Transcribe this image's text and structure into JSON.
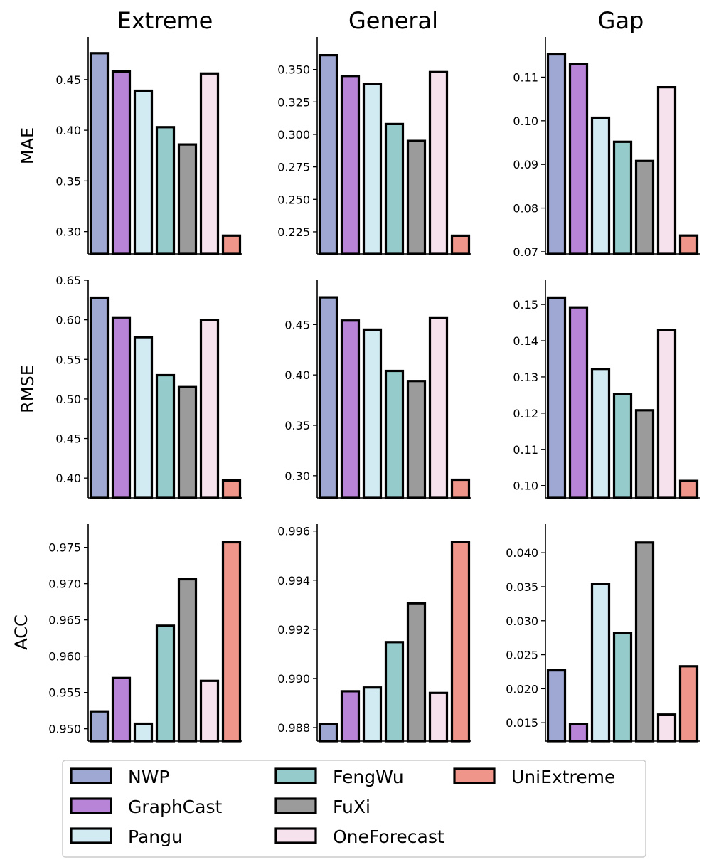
{
  "series_style": [
    {
      "name": "NWP",
      "color": "#9fa8d2"
    },
    {
      "name": "GraphCast",
      "color": "#b784d8"
    },
    {
      "name": "Pangu",
      "color": "#d2eaf1"
    },
    {
      "name": "FengWu",
      "color": "#95cccb"
    },
    {
      "name": "FuXi",
      "color": "#9b9b9b"
    },
    {
      "name": "OneForecast",
      "color": "#f6e2ec"
    },
    {
      "name": "UniExtreme",
      "color": "#ef9589"
    }
  ],
  "legend_labels": [
    "NWP",
    "GraphCast",
    "Pangu",
    "FengWu",
    "FuXi",
    "OneForecast",
    "UniExtreme"
  ],
  "legend_placement": "bottom-center",
  "column_titles": [
    "Extreme",
    "General",
    "Gap"
  ],
  "row_labels": [
    "MAE",
    "RMSE",
    "ACC"
  ],
  "chart_data": [
    {
      "type": "bar",
      "row": "MAE",
      "column": "Extreme",
      "categories": [
        "NWP",
        "GraphCast",
        "Pangu",
        "FengWu",
        "FuXi",
        "OneForecast",
        "UniExtreme"
      ],
      "values": [
        0.476,
        0.458,
        0.439,
        0.403,
        0.386,
        0.456,
        0.296
      ],
      "ylim": [
        0.278,
        0.492
      ],
      "yticks": [
        "0.30",
        "0.35",
        "0.40",
        "0.45"
      ]
    },
    {
      "type": "bar",
      "row": "MAE",
      "column": "General",
      "categories": [
        "NWP",
        "GraphCast",
        "Pangu",
        "FengWu",
        "FuXi",
        "OneForecast",
        "UniExtreme"
      ],
      "values": [
        0.361,
        0.345,
        0.339,
        0.308,
        0.295,
        0.348,
        0.222
      ],
      "ylim": [
        0.208,
        0.375
      ],
      "yticks": [
        "0.225",
        "0.250",
        "0.275",
        "0.300",
        "0.325",
        "0.350"
      ]
    },
    {
      "type": "bar",
      "row": "MAE",
      "column": "Gap",
      "categories": [
        "NWP",
        "GraphCast",
        "Pangu",
        "FengWu",
        "FuXi",
        "OneForecast",
        "UniExtreme"
      ],
      "values": [
        0.1152,
        0.113,
        0.1007,
        0.0952,
        0.0908,
        0.1077,
        0.0737
      ],
      "ylim": [
        0.0695,
        0.1192
      ],
      "yticks": [
        "0.07",
        "0.08",
        "0.09",
        "0.10",
        "0.11"
      ]
    },
    {
      "type": "bar",
      "row": "RMSE",
      "column": "Extreme",
      "categories": [
        "NWP",
        "GraphCast",
        "Pangu",
        "FengWu",
        "FuXi",
        "OneForecast",
        "UniExtreme"
      ],
      "values": [
        0.628,
        0.603,
        0.578,
        0.53,
        0.515,
        0.6,
        0.397
      ],
      "ylim": [
        0.375,
        0.65
      ],
      "yticks": [
        "0.40",
        "0.45",
        "0.50",
        "0.55",
        "0.60",
        "0.65"
      ]
    },
    {
      "type": "bar",
      "row": "RMSE",
      "column": "General",
      "categories": [
        "NWP",
        "GraphCast",
        "Pangu",
        "FengWu",
        "FuXi",
        "OneForecast",
        "UniExtreme"
      ],
      "values": [
        0.477,
        0.454,
        0.445,
        0.404,
        0.394,
        0.457,
        0.296
      ],
      "ylim": [
        0.278,
        0.494
      ],
      "yticks": [
        "0.30",
        "0.35",
        "0.40",
        "0.45"
      ]
    },
    {
      "type": "bar",
      "row": "RMSE",
      "column": "Gap",
      "categories": [
        "NWP",
        "GraphCast",
        "Pangu",
        "FengWu",
        "FuXi",
        "OneForecast",
        "UniExtreme"
      ],
      "values": [
        0.1519,
        0.1492,
        0.1322,
        0.1253,
        0.1208,
        0.143,
        0.1013
      ],
      "ylim": [
        0.0966,
        0.1567
      ],
      "yticks": [
        "0.10",
        "0.11",
        "0.12",
        "0.13",
        "0.14",
        "0.15"
      ]
    },
    {
      "type": "bar",
      "row": "ACC",
      "column": "Extreme",
      "categories": [
        "NWP",
        "GraphCast",
        "Pangu",
        "FengWu",
        "FuXi",
        "OneForecast",
        "UniExtreme"
      ],
      "values": [
        0.9524,
        0.957,
        0.9507,
        0.9642,
        0.9706,
        0.9566,
        0.9757
      ],
      "ylim": [
        0.9483,
        0.9782
      ],
      "yticks": [
        "0.950",
        "0.955",
        "0.960",
        "0.965",
        "0.970",
        "0.975"
      ]
    },
    {
      "type": "bar",
      "row": "ACC",
      "column": "General",
      "categories": [
        "NWP",
        "GraphCast",
        "Pangu",
        "FengWu",
        "FuXi",
        "OneForecast",
        "UniExtreme"
      ],
      "values": [
        0.98815,
        0.98948,
        0.98963,
        0.99148,
        0.99306,
        0.98941,
        0.99555
      ],
      "ylim": [
        0.98745,
        0.99628
      ],
      "yticks": [
        "0.988",
        "0.990",
        "0.992",
        "0.994",
        "0.996"
      ]
    },
    {
      "type": "bar",
      "row": "ACC",
      "column": "Gap",
      "categories": [
        "NWP",
        "GraphCast",
        "Pangu",
        "FengWu",
        "FuXi",
        "OneForecast",
        "UniExtreme"
      ],
      "values": [
        0.0227,
        0.0148,
        0.0354,
        0.0282,
        0.0415,
        0.0162,
        0.0233
      ],
      "ylim": [
        0.0123,
        0.0442
      ],
      "yticks": [
        "0.015",
        "0.020",
        "0.025",
        "0.030",
        "0.035",
        "0.040"
      ]
    }
  ]
}
